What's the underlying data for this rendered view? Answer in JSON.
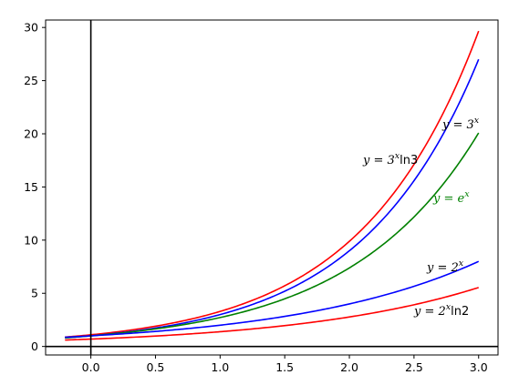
{
  "chart_data": {
    "type": "line",
    "title": "",
    "xlabel": "",
    "ylabel": "",
    "xlim": [
      -0.35,
      3.15
    ],
    "ylim": [
      -0.8,
      30.7
    ],
    "xticks": [
      0.0,
      0.5,
      1.0,
      1.5,
      2.0,
      2.5,
      3.0
    ],
    "yticks": [
      0,
      5,
      10,
      15,
      20,
      25,
      30
    ],
    "xtick_labels": [
      "0.0",
      "0.5",
      "1.0",
      "1.5",
      "2.0",
      "2.5",
      "3.0"
    ],
    "ytick_labels": [
      "0",
      "5",
      "10",
      "15",
      "20",
      "25",
      "30"
    ],
    "grid": false,
    "reference_lines": {
      "vertical_x": 0,
      "horizontal_y": 0,
      "color": "#000000"
    },
    "x_range": [
      -0.2,
      3.0
    ],
    "series": [
      {
        "function": "3^x*ln3",
        "color": "#ff0000",
        "x": [
          -0.2,
          0.0,
          0.5,
          1.0,
          1.5,
          2.0,
          2.5,
          3.0
        ],
        "values": [
          0.88,
          1.1,
          1.9,
          3.3,
          5.71,
          9.89,
          17.13,
          29.66
        ]
      },
      {
        "function": "3^x",
        "color": "#0000ff",
        "x": [
          -0.2,
          0.0,
          0.5,
          1.0,
          1.5,
          2.0,
          2.5,
          3.0
        ],
        "values": [
          0.8,
          1.0,
          1.73,
          3.0,
          5.2,
          9.0,
          15.59,
          27.0
        ]
      },
      {
        "function": "e^x",
        "color": "#008000",
        "x": [
          -0.2,
          0.0,
          0.5,
          1.0,
          1.5,
          2.0,
          2.5,
          3.0
        ],
        "values": [
          0.82,
          1.0,
          1.65,
          2.72,
          4.48,
          7.39,
          12.18,
          20.09
        ]
      },
      {
        "function": "2^x",
        "color": "#0000ff",
        "x": [
          -0.2,
          0.0,
          0.5,
          1.0,
          1.5,
          2.0,
          2.5,
          3.0
        ],
        "values": [
          0.87,
          1.0,
          1.41,
          2.0,
          2.83,
          4.0,
          5.66,
          8.0
        ]
      },
      {
        "function": "2^x*ln2",
        "color": "#ff0000",
        "x": [
          -0.2,
          0.0,
          0.5,
          1.0,
          1.5,
          2.0,
          2.5,
          3.0
        ],
        "values": [
          0.6,
          0.69,
          0.98,
          1.39,
          1.96,
          2.77,
          3.92,
          5.55
        ]
      }
    ],
    "annotations": [
      {
        "text": "y = 3^x",
        "x": 2.7,
        "y": 20.7,
        "color": "#000000"
      },
      {
        "text": "y = 3^x ln3",
        "x": 2.1,
        "y": 17.3,
        "color": "#000000"
      },
      {
        "text": "y = e^x",
        "x": 2.65,
        "y": 13.8,
        "color": "#008000"
      },
      {
        "text": "y = 2^x",
        "x": 2.6,
        "y": 7.3,
        "color": "#000000"
      },
      {
        "text": "y = 2^x ln2",
        "x": 2.5,
        "y": 3.1,
        "color": "#000000"
      }
    ]
  }
}
